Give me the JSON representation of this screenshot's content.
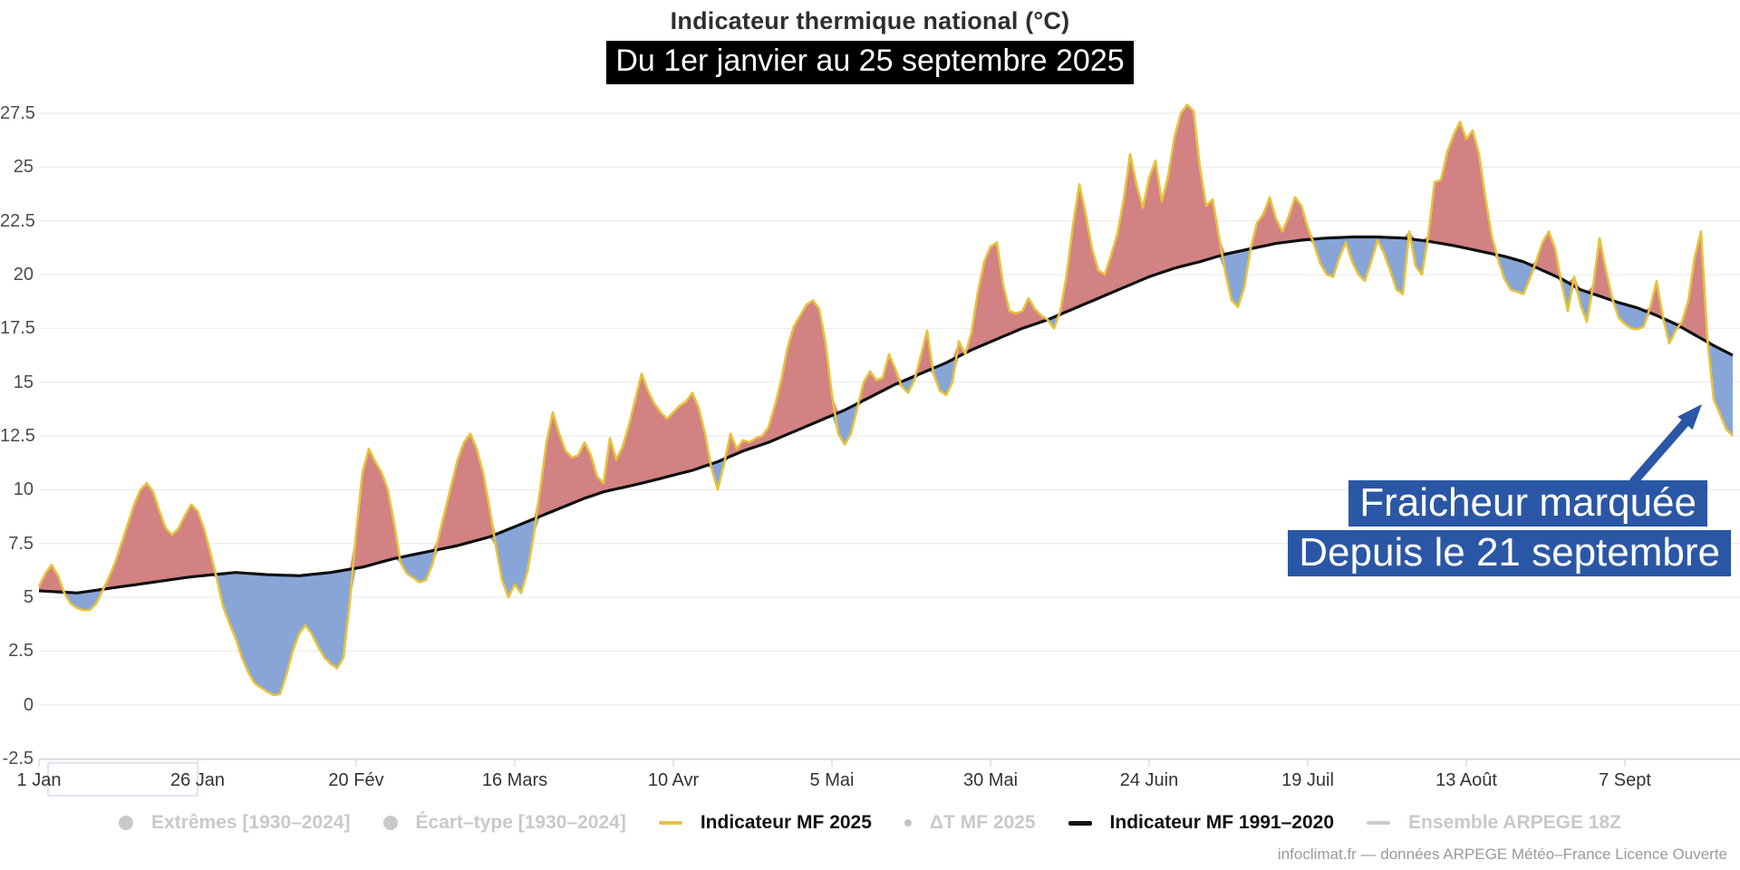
{
  "title": "Indicateur thermique national (°C)",
  "subtitle": "Du 1er janvier au 25 septembre 2025",
  "annotation": {
    "line1": "Fraicheur marquée",
    "line2": "Depuis le 21 septembre",
    "bg": "#2a57a5"
  },
  "footer": "infoclimat.fr — données ARPEGE Météo–France Licence Ouverte",
  "legend": {
    "items": [
      {
        "label": "Extrêmes [1930–2024]",
        "icon": "circle",
        "color": "#c9c9c9",
        "active": false
      },
      {
        "label": "Écart–type [1930–2024]",
        "icon": "circle",
        "color": "#c9c9c9",
        "active": false
      },
      {
        "label": "Indicateur MF 2025",
        "icon": "line",
        "color": "#e6c33c",
        "active": true
      },
      {
        "label": "ΔT MF 2025",
        "icon": "dot",
        "color": "#c3c3c3",
        "active": false
      },
      {
        "label": "Indicateur MF 1991–2020",
        "icon": "line",
        "color": "#111111",
        "active": true
      },
      {
        "label": "Ensemble ARPEGE 18Z",
        "icon": "line",
        "color": "#cccccc",
        "active": false
      }
    ]
  },
  "y_axis": {
    "ticks": [
      27.5,
      25,
      22.5,
      20,
      17.5,
      15,
      12.5,
      10,
      7.5,
      5,
      2.5,
      0,
      -2.5
    ]
  },
  "x_axis": {
    "ticks": [
      "1 Jan",
      "26 Jan",
      "20 Fév",
      "16 Mars",
      "10 Avr",
      "5 Mai",
      "30 Mai",
      "24 Juin",
      "19 Juil",
      "13 Août",
      "7 Sept"
    ],
    "interval_days": 25
  },
  "colors": {
    "warm_fill": "#d28282",
    "cool_fill": "#87a5d7",
    "line_2025": "#e6c33c",
    "line_normal": "#101010",
    "grid": "#e7e7e7",
    "axis": "#c9ced3",
    "annotation_blue": "#2a57a5",
    "focus_outline": "#bccae6"
  },
  "chart_data": {
    "type": "area",
    "title": "Indicateur thermique national (°C)",
    "subtitle": "Du 1er janvier au 25 septembre 2025",
    "x_unit": "day of 2025, index 0 = 1 Jan, last index 267 = 25 Sep",
    "xlabel": "",
    "ylabel": "°C",
    "ylim": [
      -2.5,
      28.6
    ],
    "grid": "horizontal",
    "legend_position": "bottom",
    "fills": [
      {
        "name": "2025 above normal",
        "color": "#d28282"
      },
      {
        "name": "2025 below normal",
        "color": "#87a5d7"
      }
    ],
    "series": [
      {
        "name": "Indicateur MF 2025",
        "color": "#e6c33c",
        "values": [
          5.5,
          6.1,
          6.5,
          6.0,
          5.2,
          4.7,
          4.5,
          4.4,
          4.4,
          4.7,
          5.3,
          5.9,
          6.6,
          7.5,
          8.4,
          9.3,
          10.0,
          10.3,
          9.9,
          9.0,
          8.2,
          7.9,
          8.2,
          8.8,
          9.3,
          9.0,
          8.2,
          7.1,
          5.9,
          4.6,
          3.8,
          3.1,
          2.2,
          1.5,
          1.0,
          0.8,
          0.6,
          0.45,
          0.5,
          1.4,
          2.5,
          3.3,
          3.7,
          3.3,
          2.7,
          2.2,
          1.9,
          1.7,
          2.2,
          4.8,
          8.0,
          10.8,
          11.9,
          11.3,
          10.8,
          10.0,
          8.4,
          6.6,
          6.1,
          5.9,
          5.7,
          5.8,
          6.5,
          7.8,
          9.0,
          10.2,
          11.4,
          12.2,
          12.6,
          11.9,
          10.8,
          9.2,
          7.4,
          5.8,
          5.0,
          5.6,
          5.2,
          6.2,
          7.9,
          10.0,
          12.2,
          13.6,
          12.6,
          11.8,
          11.5,
          11.6,
          12.2,
          11.6,
          10.6,
          10.3,
          12.4,
          11.4,
          12.0,
          13.0,
          14.2,
          15.4,
          14.6,
          14.0,
          13.6,
          13.3,
          13.6,
          13.9,
          14.1,
          14.5,
          13.8,
          12.6,
          11.0,
          10.0,
          11.2,
          12.6,
          11.9,
          12.3,
          12.2,
          12.4,
          12.5,
          12.9,
          13.9,
          15.1,
          16.6,
          17.6,
          18.1,
          18.6,
          18.8,
          18.4,
          16.8,
          14.4,
          12.6,
          12.1,
          12.6,
          13.8,
          15.0,
          15.5,
          15.1,
          15.2,
          16.3,
          15.6,
          14.8,
          14.5,
          15.1,
          16.2,
          17.4,
          15.4,
          14.6,
          14.4,
          15.0,
          16.9,
          16.3,
          17.3,
          19.2,
          20.6,
          21.3,
          21.5,
          19.5,
          18.3,
          18.2,
          18.3,
          18.9,
          18.4,
          18.1,
          17.9,
          17.5,
          18.3,
          20.0,
          22.3,
          24.2,
          22.8,
          21.2,
          20.2,
          20.0,
          20.9,
          21.9,
          23.5,
          25.6,
          24.2,
          23.1,
          24.5,
          25.3,
          23.4,
          24.6,
          26.4,
          27.5,
          27.9,
          27.6,
          25.0,
          23.2,
          23.5,
          21.8,
          20.1,
          18.8,
          18.5,
          19.4,
          21.2,
          22.4,
          22.8,
          23.6,
          22.6,
          22.0,
          22.7,
          23.6,
          23.2,
          22.2,
          21.4,
          20.5,
          20.0,
          19.9,
          20.8,
          21.5,
          20.6,
          20.0,
          19.7,
          20.6,
          21.6,
          21.0,
          20.2,
          19.3,
          19.1,
          22.0,
          20.4,
          20.0,
          21.8,
          24.3,
          24.4,
          25.7,
          26.5,
          27.1,
          26.3,
          26.7,
          25.6,
          23.6,
          21.8,
          20.7,
          19.8,
          19.3,
          19.2,
          19.1,
          19.8,
          20.6,
          21.5,
          22.0,
          21.2,
          19.6,
          18.3,
          19.9,
          18.6,
          17.8,
          19.5,
          21.7,
          20.2,
          18.9,
          18.0,
          17.7,
          17.5,
          17.45,
          17.6,
          18.5,
          19.7,
          18.0,
          16.8,
          17.4,
          17.8,
          18.8,
          20.8,
          22.0,
          17.0,
          14.2,
          13.5,
          12.8,
          12.5
        ]
      },
      {
        "name": "Indicateur MF 1991–2020",
        "color": "#101010",
        "anchors": [
          [
            0,
            5.3
          ],
          [
            6,
            5.2
          ],
          [
            12,
            5.45
          ],
          [
            18,
            5.7
          ],
          [
            24,
            5.95
          ],
          [
            31,
            6.15
          ],
          [
            36,
            6.05
          ],
          [
            41,
            6.0
          ],
          [
            46,
            6.15
          ],
          [
            51,
            6.4
          ],
          [
            56,
            6.8
          ],
          [
            61,
            7.1
          ],
          [
            66,
            7.4
          ],
          [
            71,
            7.8
          ],
          [
            76,
            8.4
          ],
          [
            81,
            9.0
          ],
          [
            86,
            9.6
          ],
          [
            89,
            9.9
          ],
          [
            92,
            10.1
          ],
          [
            95,
            10.3
          ],
          [
            99,
            10.6
          ],
          [
            103,
            10.9
          ],
          [
            107,
            11.3
          ],
          [
            111,
            11.8
          ],
          [
            115,
            12.2
          ],
          [
            119,
            12.7
          ],
          [
            123,
            13.2
          ],
          [
            127,
            13.7
          ],
          [
            131,
            14.3
          ],
          [
            135,
            14.9
          ],
          [
            139,
            15.4
          ],
          [
            143,
            15.9
          ],
          [
            147,
            16.5
          ],
          [
            151,
            17.0
          ],
          [
            155,
            17.5
          ],
          [
            159,
            17.9
          ],
          [
            163,
            18.4
          ],
          [
            167,
            18.9
          ],
          [
            171,
            19.4
          ],
          [
            175,
            19.9
          ],
          [
            179,
            20.3
          ],
          [
            183,
            20.6
          ],
          [
            187,
            20.95
          ],
          [
            191,
            21.2
          ],
          [
            195,
            21.45
          ],
          [
            199,
            21.6
          ],
          [
            203,
            21.7
          ],
          [
            207,
            21.75
          ],
          [
            211,
            21.75
          ],
          [
            215,
            21.7
          ],
          [
            219,
            21.55
          ],
          [
            223,
            21.35
          ],
          [
            227,
            21.1
          ],
          [
            231,
            20.85
          ],
          [
            234,
            20.6
          ],
          [
            237,
            20.2
          ],
          [
            240,
            19.8
          ],
          [
            243,
            19.3
          ],
          [
            246,
            19.0
          ],
          [
            249,
            18.7
          ],
          [
            252,
            18.45
          ],
          [
            255,
            18.1
          ],
          [
            258,
            17.7
          ],
          [
            261,
            17.2
          ],
          [
            264,
            16.7
          ],
          [
            267,
            16.25
          ]
        ]
      }
    ]
  }
}
